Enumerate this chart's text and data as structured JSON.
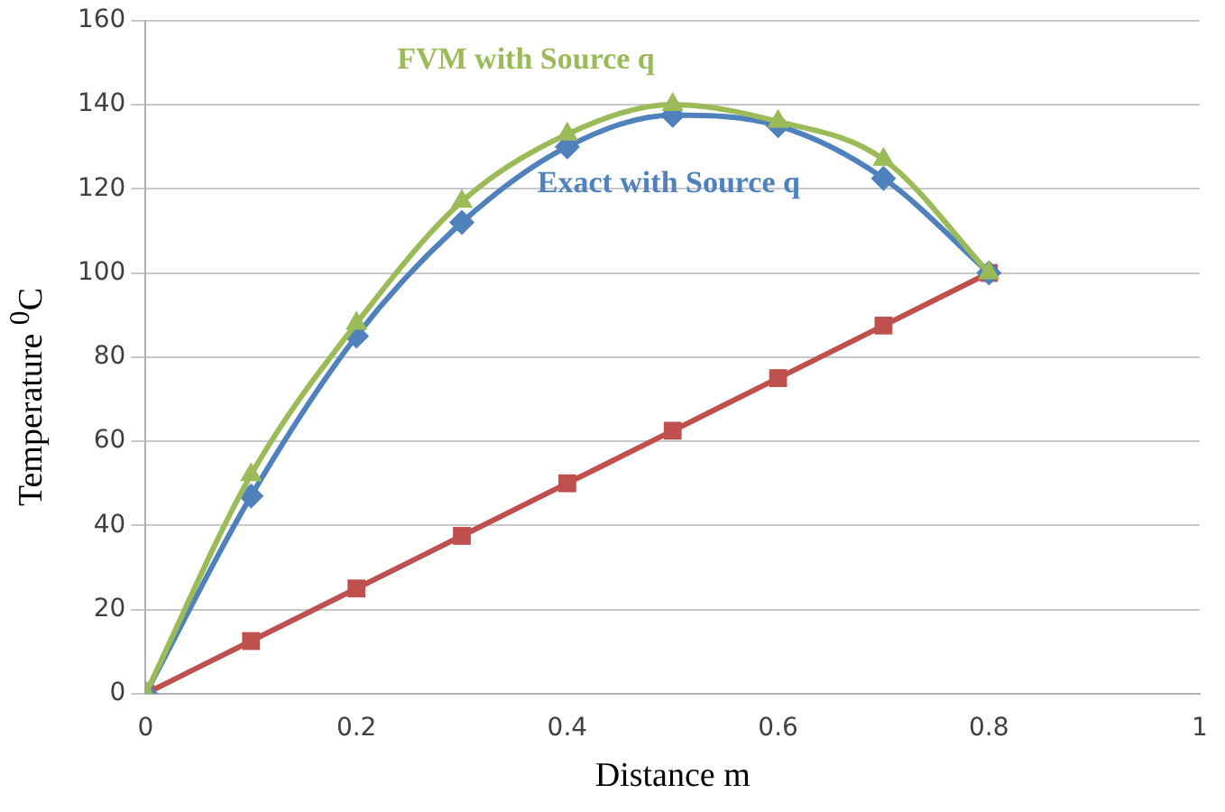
{
  "chart_data": {
    "type": "line",
    "xlabel": "Distance m",
    "ylabel": "Temperature $^{0}$C",
    "x": [
      0,
      0.1,
      0.2,
      0.3,
      0.4,
      0.5,
      0.6,
      0.7,
      0.8
    ],
    "series": [
      {
        "name": "FVM with Source q",
        "color": "#9bbb59",
        "marker": "triangle",
        "values": [
          0,
          52,
          88,
          117,
          133,
          140,
          136,
          127,
          100
        ]
      },
      {
        "name": "Exact with Source q",
        "color": "#4f81bd",
        "marker": "diamond",
        "values": [
          0,
          47,
          85,
          112,
          130,
          137.5,
          135,
          122.5,
          100
        ]
      },
      {
        "color": "#c0504d",
        "marker": "square",
        "values": [
          0,
          12.5,
          25,
          37.5,
          50,
          62.5,
          75,
          87.5,
          100
        ]
      }
    ],
    "xlim": [
      0,
      1
    ],
    "xticks": [
      0,
      0.2,
      0.4,
      0.6,
      0.8,
      1
    ],
    "ylim": [
      0,
      160
    ],
    "yticks": [
      0,
      20,
      40,
      60,
      80,
      100,
      120,
      140,
      160
    ],
    "grid": "y",
    "legend": false,
    "line_style": "solid"
  }
}
